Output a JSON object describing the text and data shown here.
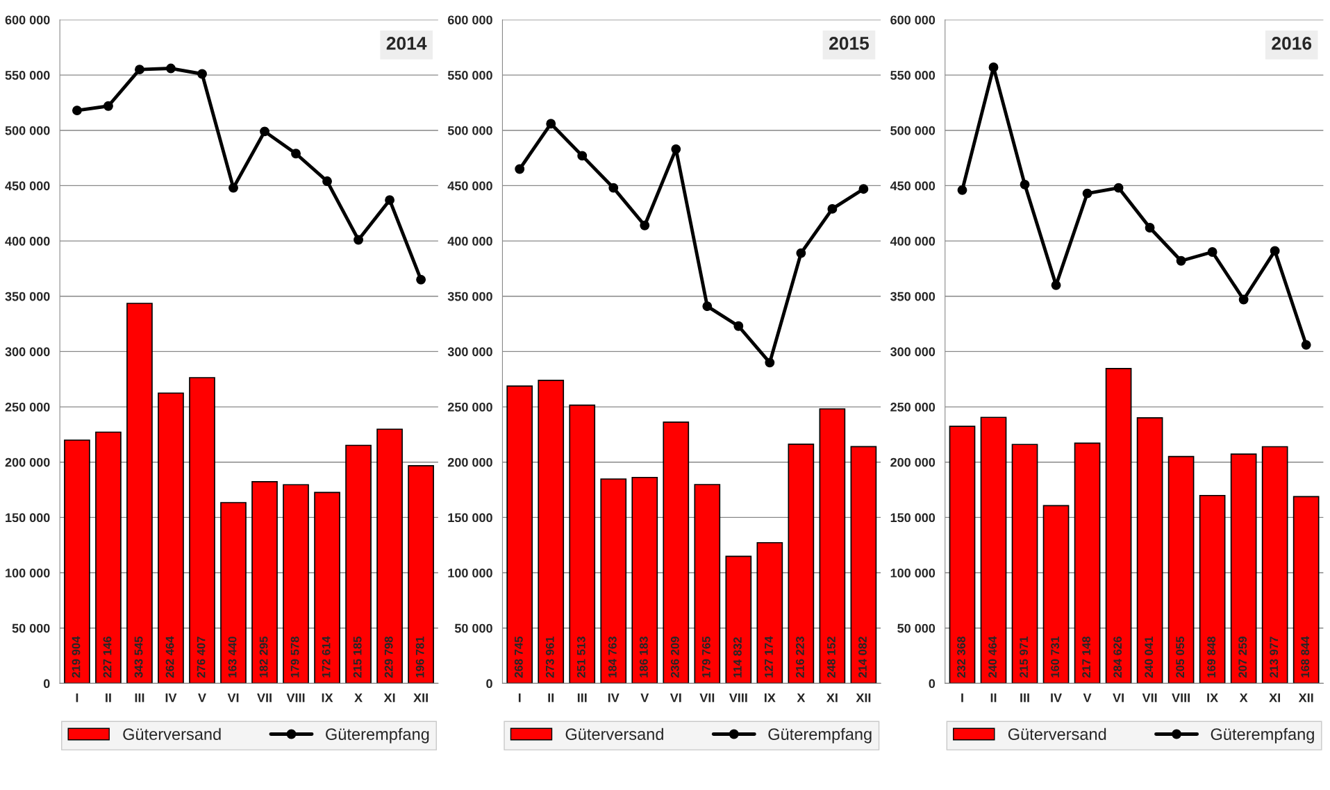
{
  "chart_data": [
    {
      "type": "bar",
      "title": "2014",
      "categories": [
        "I",
        "II",
        "III",
        "IV",
        "V",
        "VI",
        "VII",
        "VIII",
        "IX",
        "X",
        "XI",
        "XII"
      ],
      "ylim": [
        0,
        600000
      ],
      "yticks": [
        {
          "value": 0,
          "label": "0"
        },
        {
          "value": 50000,
          "label": "50 000"
        },
        {
          "value": 100000,
          "label": "100 000"
        },
        {
          "value": 150000,
          "label": "150 000"
        },
        {
          "value": 200000,
          "label": "200 000"
        },
        {
          "value": 250000,
          "label": "250 000"
        },
        {
          "value": 300000,
          "label": "300 000"
        },
        {
          "value": 350000,
          "label": "350 000"
        },
        {
          "value": 400000,
          "label": "400 000"
        },
        {
          "value": 450000,
          "label": "450 000"
        },
        {
          "value": 500000,
          "label": "500 000"
        },
        {
          "value": 550000,
          "label": "550 000"
        },
        {
          "value": 600000,
          "label": "600 000"
        }
      ],
      "grid": "y",
      "legend": "bottom",
      "series": [
        {
          "name": "Güterversand",
          "color": "#ff0000",
          "values": [
            219904,
            227146,
            343545,
            262464,
            276407,
            163440,
            182295,
            179578,
            172614,
            215185,
            229798,
            196781
          ],
          "value_labels": [
            "219 904",
            "227 146",
            "343 545",
            "262 464",
            "276 407",
            "163 440",
            "182 295",
            "179 578",
            "172 614",
            "215 185",
            "229 798",
            "196 781"
          ]
        },
        {
          "name": "Güterempfang",
          "type": "line",
          "color": "#000000",
          "marker": "circle",
          "values": [
            518000,
            522000,
            555000,
            556000,
            551000,
            448000,
            499000,
            479000,
            454000,
            401000,
            437000,
            365000
          ]
        }
      ]
    },
    {
      "type": "bar",
      "title": "2015",
      "categories": [
        "I",
        "II",
        "III",
        "IV",
        "V",
        "VI",
        "VII",
        "VIII",
        "IX",
        "X",
        "XI",
        "XII"
      ],
      "ylim": [
        0,
        600000
      ],
      "yticks": [
        {
          "value": 0,
          "label": "0"
        },
        {
          "value": 50000,
          "label": "50 000"
        },
        {
          "value": 100000,
          "label": "100 000"
        },
        {
          "value": 150000,
          "label": "150 000"
        },
        {
          "value": 200000,
          "label": "200 000"
        },
        {
          "value": 250000,
          "label": "250 000"
        },
        {
          "value": 300000,
          "label": "300 000"
        },
        {
          "value": 350000,
          "label": "350 000"
        },
        {
          "value": 400000,
          "label": "400 000"
        },
        {
          "value": 450000,
          "label": "450 000"
        },
        {
          "value": 500000,
          "label": "500 000"
        },
        {
          "value": 550000,
          "label": "550 000"
        },
        {
          "value": 600000,
          "label": "600 000"
        }
      ],
      "grid": "y",
      "legend": "bottom",
      "series": [
        {
          "name": "Güterversand",
          "color": "#ff0000",
          "values": [
            268745,
            273961,
            251513,
            184763,
            186183,
            236209,
            179765,
            114832,
            127174,
            216223,
            248152,
            214082
          ],
          "value_labels": [
            "268 745",
            "273 961",
            "251 513",
            "184 763",
            "186 183",
            "236 209",
            "179 765",
            "114 832",
            "127 174",
            "216 223",
            "248 152",
            "214 082"
          ]
        },
        {
          "name": "Güterempfang",
          "type": "line",
          "color": "#000000",
          "marker": "circle",
          "values": [
            465000,
            506000,
            477000,
            448000,
            414000,
            483000,
            341000,
            323000,
            290000,
            389000,
            429000,
            447000
          ]
        }
      ]
    },
    {
      "type": "bar",
      "title": "2016",
      "categories": [
        "I",
        "II",
        "III",
        "IV",
        "V",
        "VI",
        "VII",
        "VIII",
        "IX",
        "X",
        "XI",
        "XII"
      ],
      "ylim": [
        0,
        600000
      ],
      "yticks": [
        {
          "value": 0,
          "label": "0"
        },
        {
          "value": 50000,
          "label": "50 000"
        },
        {
          "value": 100000,
          "label": "100 000"
        },
        {
          "value": 150000,
          "label": "150 000"
        },
        {
          "value": 200000,
          "label": "200 000"
        },
        {
          "value": 250000,
          "label": "250 000"
        },
        {
          "value": 300000,
          "label": "300 000"
        },
        {
          "value": 350000,
          "label": "350 000"
        },
        {
          "value": 400000,
          "label": "400 000"
        },
        {
          "value": 450000,
          "label": "450 000"
        },
        {
          "value": 500000,
          "label": "500 000"
        },
        {
          "value": 550000,
          "label": "550 000"
        },
        {
          "value": 600000,
          "label": "600 000"
        }
      ],
      "grid": "y",
      "legend": "bottom",
      "series": [
        {
          "name": "Güterversand",
          "color": "#ff0000",
          "values": [
            232368,
            240464,
            215971,
            160731,
            217148,
            284626,
            240041,
            205055,
            169848,
            207259,
            213977,
            168844
          ],
          "value_labels": [
            "232 368",
            "240 464",
            "215 971",
            "160 731",
            "217 148",
            "284 626",
            "240 041",
            "205 055",
            "169 848",
            "207 259",
            "213 977",
            "168 844"
          ]
        },
        {
          "name": "Güterempfang",
          "type": "line",
          "color": "#000000",
          "marker": "circle",
          "values": [
            446000,
            557000,
            451000,
            360000,
            443000,
            448000,
            412000,
            382000,
            390000,
            347000,
            391000,
            306000
          ]
        }
      ]
    }
  ]
}
